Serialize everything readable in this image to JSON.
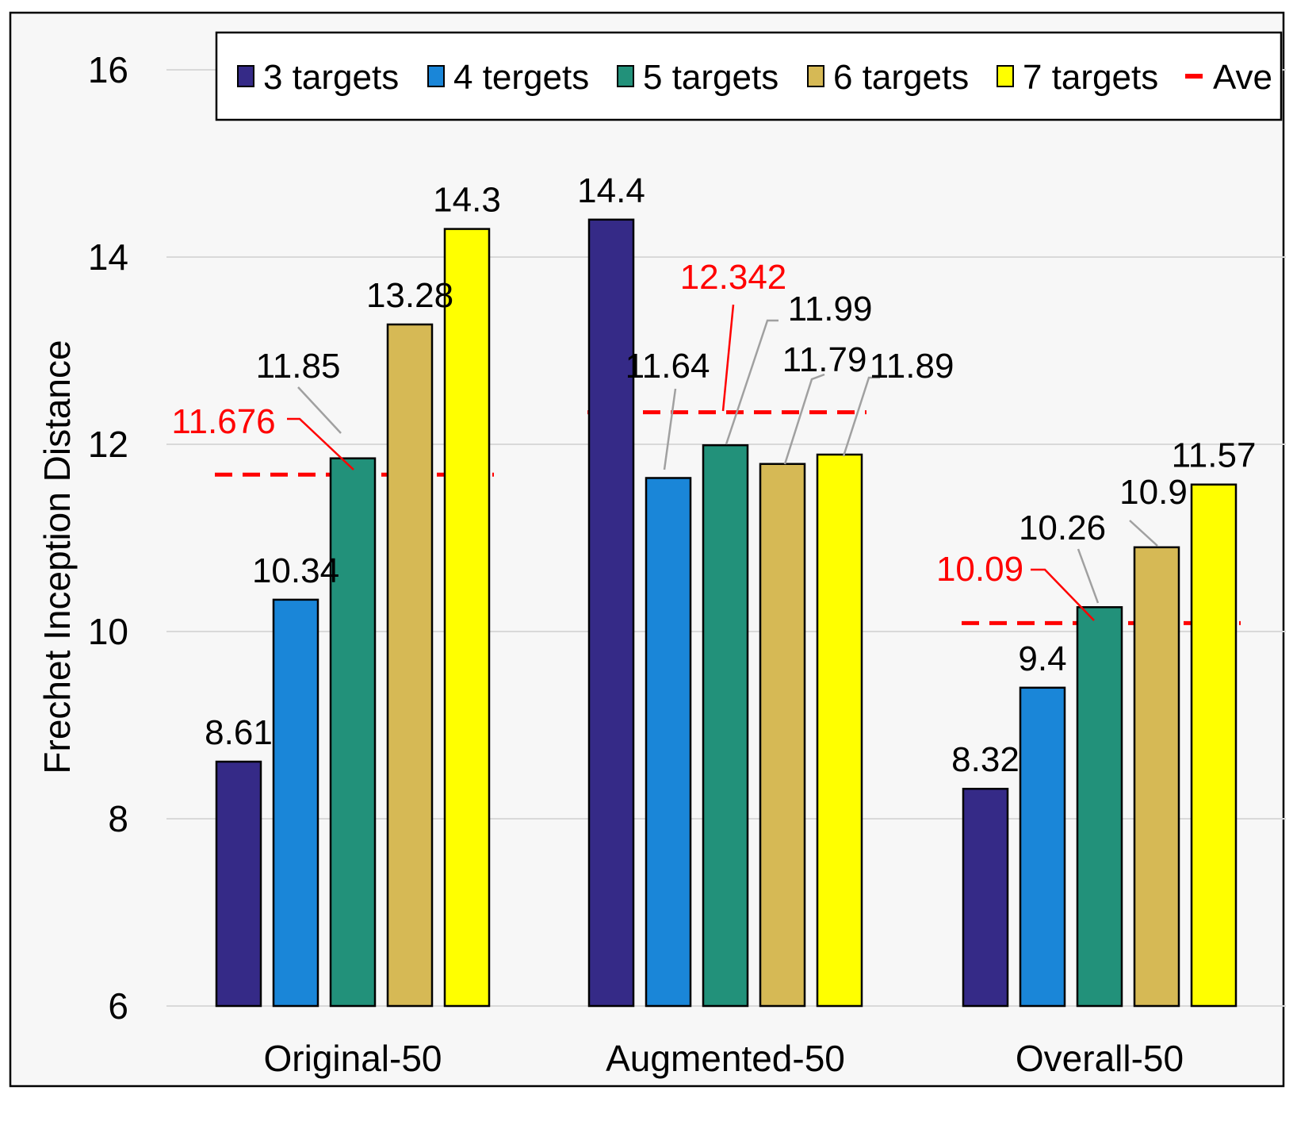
{
  "chart_data": {
    "type": "bar",
    "title": "",
    "xlabel": "",
    "ylabel": "Frechet Inception Distance",
    "ylim": [
      6,
      16
    ],
    "yticks": [
      6,
      8,
      10,
      12,
      14,
      16
    ],
    "grid": true,
    "legend_position": "top",
    "categories": [
      "Original-50",
      "Augmented-50",
      "Overall-50"
    ],
    "series": [
      {
        "name": "3 targets",
        "color": "#352a87",
        "values": [
          8.61,
          14.4,
          8.32
        ],
        "labels": [
          "8.61",
          "14.4",
          "8.32"
        ]
      },
      {
        "name": "4 tergets",
        "color": "#1a86d8",
        "values": [
          10.34,
          11.64,
          9.4
        ],
        "labels": [
          "10.34",
          "11.64",
          "9.4"
        ]
      },
      {
        "name": "5 targets",
        "color": "#22917a",
        "values": [
          11.85,
          11.99,
          10.26
        ],
        "labels": [
          "11.85",
          "11.99",
          "10.26"
        ]
      },
      {
        "name": "6 targets",
        "color": "#d6b955",
        "values": [
          13.28,
          11.79,
          10.9
        ],
        "labels": [
          "13.28",
          "11.79",
          "10.9"
        ]
      },
      {
        "name": "7 targets",
        "color": "#ffff00",
        "values": [
          14.3,
          11.89,
          11.57
        ],
        "labels": [
          "14.3",
          "11.89",
          "11.57"
        ]
      }
    ],
    "average": {
      "name": "Ave",
      "color": "#ff0000",
      "values": [
        11.676,
        12.342,
        10.09
      ],
      "labels": [
        "11.676",
        "12.342",
        "10.09"
      ]
    },
    "label_color": "#000000",
    "leader_color": "#a0a0a0",
    "grid_color": "#d9d9d9",
    "plot_background": "#f7f7f7"
  }
}
